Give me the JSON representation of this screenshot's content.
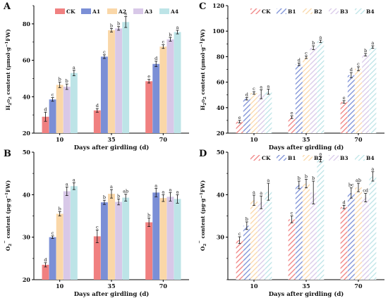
{
  "chart_data": [
    {
      "panel": "A",
      "type": "bar",
      "pattern": "solid",
      "categories": [
        "10",
        "35",
        "70"
      ],
      "xlabel": "Days after girdling (d)",
      "ylabel": "H2O2 content (μmol·g⁻¹FW)",
      "ylabel_parts": {
        "a": "H",
        "b": "2",
        "c": "O",
        "d": "2",
        "e": " content (μmol·g",
        "f": "−1",
        "g": "FW)"
      },
      "ylim": [
        20,
        90
      ],
      "yticks": [
        "20",
        "40",
        "60",
        "80"
      ],
      "legend": "top-right",
      "series": [
        {
          "name": "CK",
          "color": "#f08080",
          "values": [
            29,
            32.5,
            48.5
          ],
          "errors": [
            2.5,
            1.0,
            1.0
          ],
          "letters": [
            "d",
            "d",
            "e"
          ]
        },
        {
          "name": "A1",
          "color": "#7b8fd6",
          "values": [
            38.5,
            62,
            58
          ],
          "errors": [
            1.0,
            1.0,
            1.5
          ],
          "letters": [
            "c",
            "c",
            "d"
          ]
        },
        {
          "name": "A2",
          "color": "#fad7a8",
          "values": [
            46.5,
            76.5,
            67.5
          ],
          "errors": [
            1.5,
            1.0,
            1.0
          ],
          "letters": [
            "b",
            "b",
            "c"
          ]
        },
        {
          "name": "A3",
          "color": "#d8c8e8",
          "values": [
            45.5,
            77.5,
            71.5
          ],
          "errors": [
            1.5,
            1.0,
            1.0
          ],
          "letters": [
            "b",
            "b",
            "b"
          ]
        },
        {
          "name": "A4",
          "color": "#bde4e7",
          "values": [
            53,
            81,
            75.5
          ],
          "errors": [
            1.5,
            3.0,
            1.0
          ],
          "letters": [
            "a",
            "a",
            "a"
          ]
        }
      ]
    },
    {
      "panel": "C",
      "type": "bar",
      "pattern": "hatched",
      "categories": [
        "10",
        "35",
        "70"
      ],
      "xlabel": "Days after girdling (d)",
      "ylabel": "H2O2 content (μmol·g⁻¹FW)",
      "ylabel_parts": {
        "a": "H",
        "b": "2",
        "c": "O",
        "d": "2",
        "e": " content (μmol·g",
        "f": "−1",
        "g": "FW)"
      },
      "ylim": [
        20,
        120
      ],
      "yticks": [
        "20",
        "40",
        "60",
        "80",
        "100",
        "120"
      ],
      "legend": "top-right",
      "series": [
        {
          "name": "CK",
          "color": "#f08080",
          "values": [
            29,
            32.5,
            44.5
          ],
          "errors": [
            1.0,
            1.0,
            1.0
          ],
          "letters": [
            "e",
            "e",
            "e"
          ]
        },
        {
          "name": "B1",
          "color": "#7b8fd6",
          "values": [
            47,
            74,
            65.5
          ],
          "errors": [
            1.0,
            1.0,
            2.0
          ],
          "letters": [
            "d",
            "d",
            "d"
          ]
        },
        {
          "name": "B2",
          "color": "#fad7a8",
          "values": [
            51.5,
            79.5,
            70.5
          ],
          "errors": [
            1.0,
            1.0,
            1.5
          ],
          "letters": [
            "c",
            "c",
            "c"
          ]
        },
        {
          "name": "B3",
          "color": "#d8c8e8",
          "values": [
            50.5,
            87,
            81.5
          ],
          "errors": [
            3.5,
            1.5,
            1.0
          ],
          "letters": [
            "a",
            "b",
            "b"
          ]
        },
        {
          "name": "B4",
          "color": "#bde4e7",
          "values": [
            52.5,
            92,
            87.5
          ],
          "errors": [
            2.0,
            1.0,
            1.0
          ],
          "letters": [
            "a",
            "a",
            "a"
          ]
        }
      ]
    },
    {
      "panel": "B",
      "type": "bar",
      "pattern": "solid",
      "categories": [
        "10",
        "35",
        "70"
      ],
      "xlabel": "Days after girdling (d)",
      "ylabel": "O2− content (μg·g⁻¹FW)",
      "ylabel_parts": {
        "a": "O",
        "b": "2",
        "c": "−",
        "d": "",
        "e": " content (μg·g",
        "f": "−1",
        "g": "FW)"
      },
      "ylim": [
        20,
        50
      ],
      "yticks": [
        "20",
        "30",
        "40",
        "50"
      ],
      "legend": "",
      "series": [
        {
          "name": "CK",
          "color": "#f08080",
          "values": [
            23.5,
            30.2,
            33.5
          ],
          "errors": [
            0.5,
            1.5,
            1.0
          ],
          "letters": [
            "d",
            "c",
            "b"
          ]
        },
        {
          "name": "A1",
          "color": "#7b8fd6",
          "values": [
            30,
            38.2,
            40.5
          ],
          "errors": [
            0.3,
            0.5,
            1.0
          ],
          "letters": [
            "c",
            "b",
            "a"
          ]
        },
        {
          "name": "A2",
          "color": "#fad7a8",
          "values": [
            35.5,
            40.2,
            39.2
          ],
          "errors": [
            0.5,
            1.0,
            0.8
          ],
          "letters": [
            "b",
            "a",
            "a"
          ]
        },
        {
          "name": "A3",
          "color": "#d8c8e8",
          "values": [
            40.8,
            38.3,
            39.5
          ],
          "errors": [
            1.0,
            0.7,
            1.0
          ],
          "letters": [
            "a",
            "b",
            "a"
          ]
        },
        {
          "name": "A4",
          "color": "#bde4e7",
          "values": [
            42,
            39.3,
            39
          ],
          "errors": [
            0.8,
            0.8,
            1.0
          ],
          "letters": [
            "a",
            "ab",
            "a"
          ]
        }
      ]
    },
    {
      "panel": "D",
      "type": "bar",
      "pattern": "hatched",
      "categories": [
        "10",
        "35",
        "70"
      ],
      "xlabel": "Days after girdling (d)",
      "ylabel": "O2− content (μg·g⁻¹FW)",
      "ylabel_parts": {
        "a": "O",
        "b": "2",
        "c": "−",
        "d": "",
        "e": " content (μg·g",
        "f": "−1",
        "g": "FW)"
      },
      "ylim": [
        20,
        50
      ],
      "yticks": [
        "30",
        "40",
        "50"
      ],
      "legend": "top-right",
      "series": [
        {
          "name": "CK",
          "color": "#f08080",
          "values": [
            29.3,
            34.2,
            37.1
          ],
          "errors": [
            0.8,
            0.8,
            0.4
          ],
          "letters": [
            "c",
            "c",
            "d"
          ]
        },
        {
          "name": "B1",
          "color": "#7b8fd6",
          "values": [
            32.7,
            42.3,
            40.4
          ],
          "errors": [
            0.9,
            0.9,
            1.2
          ],
          "letters": [
            "b",
            "b",
            "bc"
          ]
        },
        {
          "name": "B2",
          "color": "#fad7a8",
          "values": [
            38.7,
            42.6,
            41.7
          ],
          "errors": [
            1.2,
            1.0,
            1.0
          ],
          "letters": [
            "a",
            "b",
            "ab"
          ]
        },
        {
          "name": "B3",
          "color": "#d8c8e8",
          "values": [
            38.2,
            40.5,
            39.3
          ],
          "errors": [
            1.5,
            2.7,
            1.0
          ],
          "letters": [
            "a",
            "b",
            "cd"
          ]
        },
        {
          "name": "B4",
          "color": "#bde4e7",
          "values": [
            40.7,
            48.3,
            44.3
          ],
          "errors": [
            2.0,
            0.6,
            1.1
          ],
          "letters": [
            "a",
            "a",
            "a"
          ]
        }
      ]
    }
  ]
}
